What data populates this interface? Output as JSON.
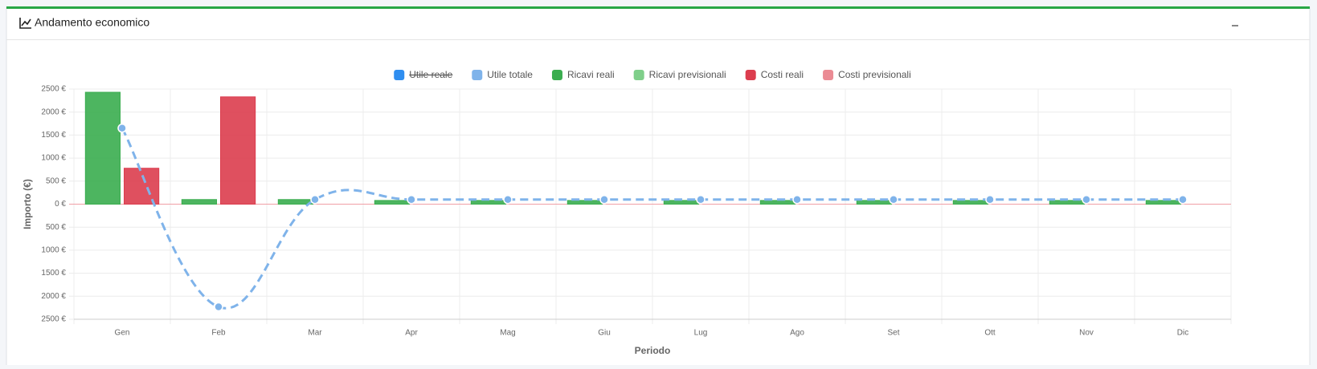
{
  "header": {
    "title": "Andamento economico"
  },
  "chart_data": {
    "type": "bar",
    "categories": [
      "Gen",
      "Feb",
      "Mar",
      "Apr",
      "Mag",
      "Giu",
      "Lug",
      "Ago",
      "Set",
      "Ott",
      "Nov",
      "Dic"
    ],
    "series": [
      {
        "name": "Utile reale",
        "color": "#2f8ef0",
        "type": "line",
        "hidden": true
      },
      {
        "name": "Utile totale",
        "color": "#7fb3ea",
        "type": "line",
        "values": [
          1650,
          -2230,
          100,
          100,
          100,
          100,
          100,
          100,
          100,
          100,
          100,
          100
        ]
      },
      {
        "name": "Ricavi reali",
        "color": "#3aad4f",
        "type": "bar",
        "stack": "ricavi",
        "values": [
          2430,
          100,
          100,
          80,
          80,
          80,
          80,
          80,
          80,
          80,
          80,
          80
        ]
      },
      {
        "name": "Ricavi previsionali",
        "color": "#7fcf8a",
        "type": "bar",
        "stack": "ricavi",
        "values": [
          0,
          0,
          0,
          0,
          0,
          0,
          0,
          0,
          0,
          0,
          0,
          0
        ]
      },
      {
        "name": "Costi reali",
        "color": "#dc3d4e",
        "type": "bar",
        "stack": "costi",
        "values": [
          780,
          2330,
          0,
          0,
          0,
          0,
          0,
          0,
          0,
          0,
          0,
          0
        ]
      },
      {
        "name": "Costi previsionali",
        "color": "#eb8b94",
        "type": "bar",
        "stack": "costi",
        "values": [
          0,
          0,
          0,
          0,
          0,
          0,
          0,
          0,
          0,
          0,
          0,
          0
        ]
      }
    ],
    "ylabel": "Importo (€)",
    "xlabel": "Periodo",
    "ylim": [
      -2500,
      2500
    ],
    "yticks": [
      {
        "value": 2500,
        "label": "2500 €"
      },
      {
        "value": 2000,
        "label": "2000 €"
      },
      {
        "value": 1500,
        "label": "1500 €"
      },
      {
        "value": 1000,
        "label": "1000 €"
      },
      {
        "value": 500,
        "label": "500 €"
      },
      {
        "value": 0,
        "label": "0 €"
      },
      {
        "value": -500,
        "label": "500 €"
      },
      {
        "value": -1000,
        "label": "1000 €"
      },
      {
        "value": -1500,
        "label": "1500 €"
      },
      {
        "value": -2000,
        "label": "2000 €"
      },
      {
        "value": -2500,
        "label": "2500 €"
      }
    ],
    "grid": true,
    "legend": "top"
  }
}
